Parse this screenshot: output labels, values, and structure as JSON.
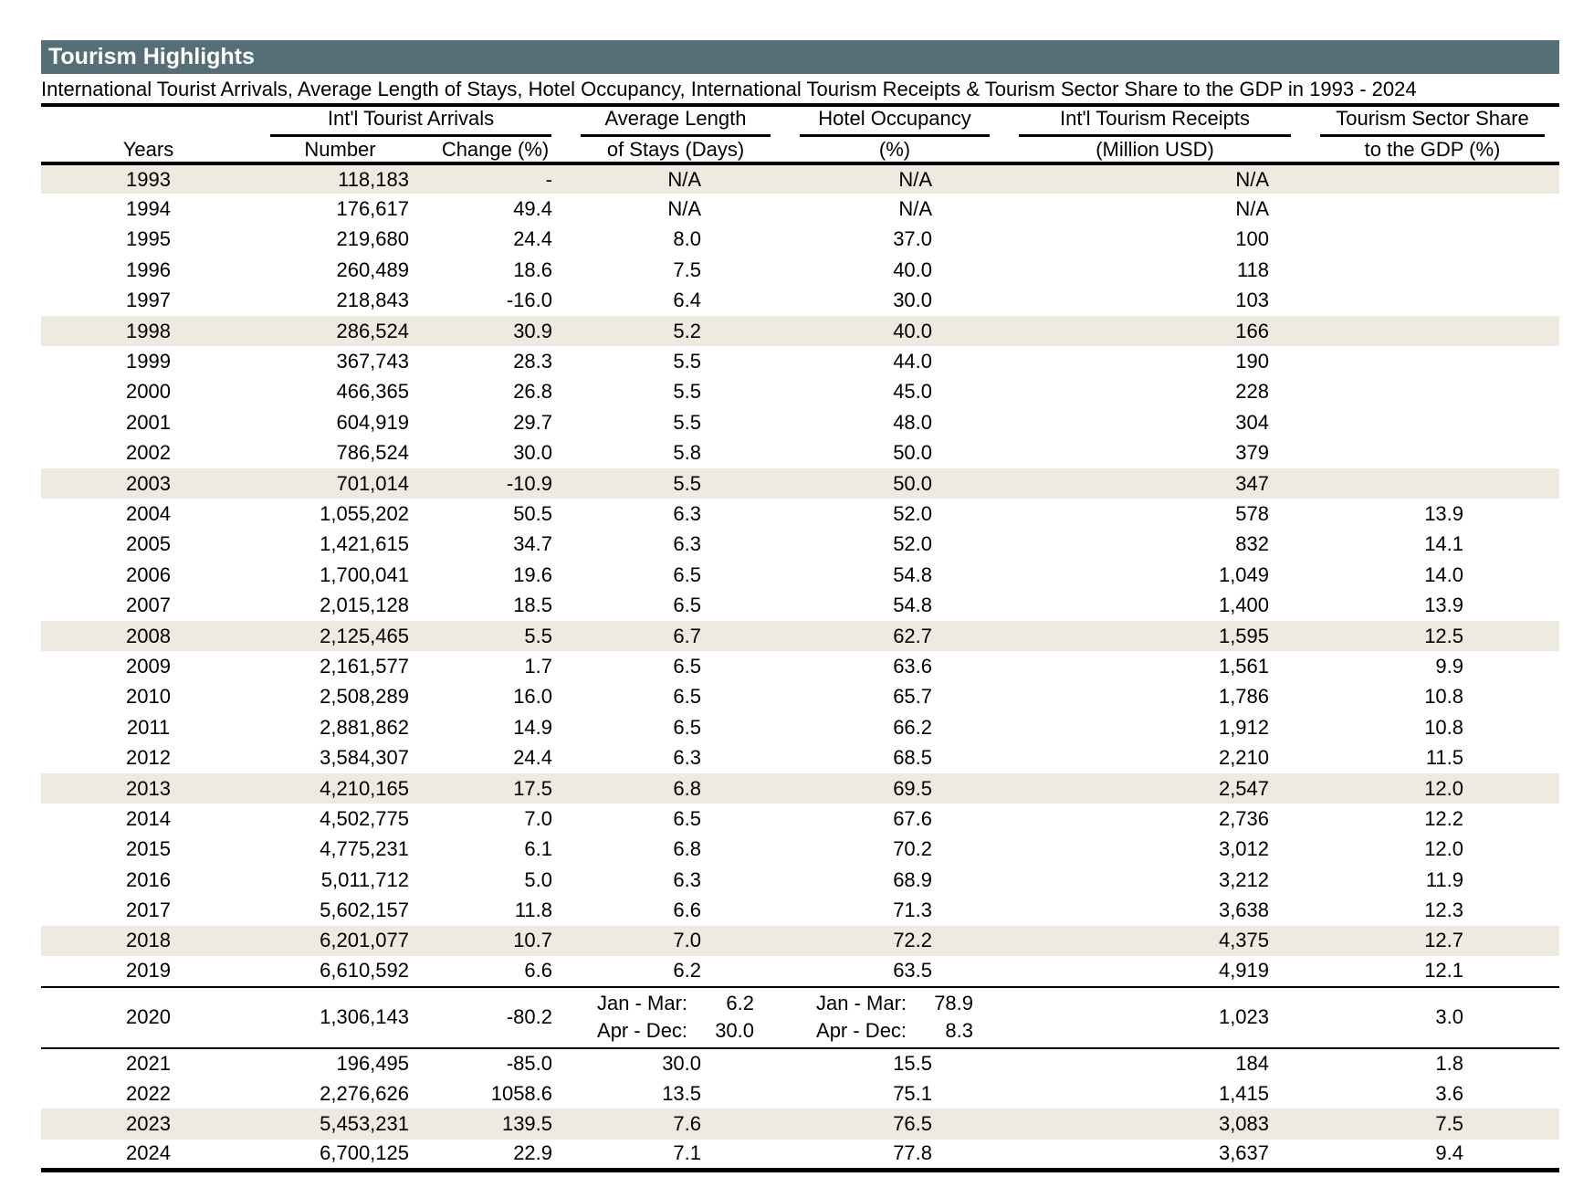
{
  "page": {
    "title_bar": "Tourism Highlights",
    "subtitle": "International Tourist Arrivals, Average Length of Stays, Hotel Occupancy, International Tourism Receipts & Tourism Sector Share to the GDP in 1993 - 2024"
  },
  "colors": {
    "title_bar_bg": "#566E75",
    "title_text": "#FFFFFF",
    "stripe_bg": "#EFEADF",
    "rule": "#000000"
  },
  "table": {
    "header": {
      "years": "Years",
      "groups": [
        {
          "label": "Int'l Tourist Arrivals",
          "sub1": "Number",
          "sub2": "Change (%)"
        },
        {
          "label": "Average Length",
          "sub1": "of Stays (Days)"
        },
        {
          "label": "Hotel Occupancy",
          "sub1": "(%)"
        },
        {
          "label": "Int'l Tourism Receipts",
          "sub1": "(Million USD)"
        },
        {
          "label": "Tourism Sector Share",
          "sub1": "to the GDP (%)"
        }
      ]
    },
    "striped_years": [
      "1993",
      "1998",
      "2003",
      "2008",
      "2013",
      "2018",
      "2023"
    ],
    "rows": [
      {
        "year": "1993",
        "number": "118,183",
        "change": "-",
        "stays": "N/A",
        "occupancy": "N/A",
        "receipts": "N/A",
        "gdp": ""
      },
      {
        "year": "1994",
        "number": "176,617",
        "change": "49.4",
        "stays": "N/A",
        "occupancy": "N/A",
        "receipts": "N/A",
        "gdp": ""
      },
      {
        "year": "1995",
        "number": "219,680",
        "change": "24.4",
        "stays": "8.0",
        "occupancy": "37.0",
        "receipts": "100",
        "gdp": ""
      },
      {
        "year": "1996",
        "number": "260,489",
        "change": "18.6",
        "stays": "7.5",
        "occupancy": "40.0",
        "receipts": "118",
        "gdp": ""
      },
      {
        "year": "1997",
        "number": "218,843",
        "change": "-16.0",
        "stays": "6.4",
        "occupancy": "30.0",
        "receipts": "103",
        "gdp": ""
      },
      {
        "year": "1998",
        "number": "286,524",
        "change": "30.9",
        "stays": "5.2",
        "occupancy": "40.0",
        "receipts": "166",
        "gdp": ""
      },
      {
        "year": "1999",
        "number": "367,743",
        "change": "28.3",
        "stays": "5.5",
        "occupancy": "44.0",
        "receipts": "190",
        "gdp": ""
      },
      {
        "year": "2000",
        "number": "466,365",
        "change": "26.8",
        "stays": "5.5",
        "occupancy": "45.0",
        "receipts": "228",
        "gdp": ""
      },
      {
        "year": "2001",
        "number": "604,919",
        "change": "29.7",
        "stays": "5.5",
        "occupancy": "48.0",
        "receipts": "304",
        "gdp": ""
      },
      {
        "year": "2002",
        "number": "786,524",
        "change": "30.0",
        "stays": "5.8",
        "occupancy": "50.0",
        "receipts": "379",
        "gdp": ""
      },
      {
        "year": "2003",
        "number": "701,014",
        "change": "-10.9",
        "stays": "5.5",
        "occupancy": "50.0",
        "receipts": "347",
        "gdp": ""
      },
      {
        "year": "2004",
        "number": "1,055,202",
        "change": "50.5",
        "stays": "6.3",
        "occupancy": "52.0",
        "receipts": "578",
        "gdp": "13.9"
      },
      {
        "year": "2005",
        "number": "1,421,615",
        "change": "34.7",
        "stays": "6.3",
        "occupancy": "52.0",
        "receipts": "832",
        "gdp": "14.1"
      },
      {
        "year": "2006",
        "number": "1,700,041",
        "change": "19.6",
        "stays": "6.5",
        "occupancy": "54.8",
        "receipts": "1,049",
        "gdp": "14.0"
      },
      {
        "year": "2007",
        "number": "2,015,128",
        "change": "18.5",
        "stays": "6.5",
        "occupancy": "54.8",
        "receipts": "1,400",
        "gdp": "13.9"
      },
      {
        "year": "2008",
        "number": "2,125,465",
        "change": "5.5",
        "stays": "6.7",
        "occupancy": "62.7",
        "receipts": "1,595",
        "gdp": "12.5"
      },
      {
        "year": "2009",
        "number": "2,161,577",
        "change": "1.7",
        "stays": "6.5",
        "occupancy": "63.6",
        "receipts": "1,561",
        "gdp": "9.9"
      },
      {
        "year": "2010",
        "number": "2,508,289",
        "change": "16.0",
        "stays": "6.5",
        "occupancy": "65.7",
        "receipts": "1,786",
        "gdp": "10.8"
      },
      {
        "year": "2011",
        "number": "2,881,862",
        "change": "14.9",
        "stays": "6.5",
        "occupancy": "66.2",
        "receipts": "1,912",
        "gdp": "10.8"
      },
      {
        "year": "2012",
        "number": "3,584,307",
        "change": "24.4",
        "stays": "6.3",
        "occupancy": "68.5",
        "receipts": "2,210",
        "gdp": "11.5"
      },
      {
        "year": "2013",
        "number": "4,210,165",
        "change": "17.5",
        "stays": "6.8",
        "occupancy": "69.5",
        "receipts": "2,547",
        "gdp": "12.0"
      },
      {
        "year": "2014",
        "number": "4,502,775",
        "change": "7.0",
        "stays": "6.5",
        "occupancy": "67.6",
        "receipts": "2,736",
        "gdp": "12.2"
      },
      {
        "year": "2015",
        "number": "4,775,231",
        "change": "6.1",
        "stays": "6.8",
        "occupancy": "70.2",
        "receipts": "3,012",
        "gdp": "12.0"
      },
      {
        "year": "2016",
        "number": "5,011,712",
        "change": "5.0",
        "stays": "6.3",
        "occupancy": "68.9",
        "receipts": "3,212",
        "gdp": "11.9"
      },
      {
        "year": "2017",
        "number": "5,602,157",
        "change": "11.8",
        "stays": "6.6",
        "occupancy": "71.3",
        "receipts": "3,638",
        "gdp": "12.3"
      },
      {
        "year": "2018",
        "number": "6,201,077",
        "change": "10.7",
        "stays": "7.0",
        "occupancy": "72.2",
        "receipts": "4,375",
        "gdp": "12.7"
      },
      {
        "year": "2019",
        "number": "6,610,592",
        "change": "6.6",
        "stays": "6.2",
        "occupancy": "63.5",
        "receipts": "4,919",
        "gdp": "12.1",
        "rule_below": true
      },
      {
        "year": "2020",
        "number": "1,306,143",
        "change": "-80.2",
        "stays_split": [
          [
            "Jan - Mar:",
            "6.2"
          ],
          [
            "Apr - Dec:",
            "30.0"
          ]
        ],
        "occupancy_split": [
          [
            "Jan - Mar:",
            "78.9"
          ],
          [
            "Apr - Dec:",
            "8.3"
          ]
        ],
        "receipts": "1,023",
        "gdp": "3.0",
        "tall": true,
        "rule_below": true
      },
      {
        "year": "2021",
        "number": "196,495",
        "change": "-85.0",
        "stays": "30.0",
        "occupancy": "15.5",
        "receipts": "184",
        "gdp": "1.8"
      },
      {
        "year": "2022",
        "number": "2,276,626",
        "change": "1058.6",
        "stays": "13.5",
        "occupancy": "75.1",
        "receipts": "1,415",
        "gdp": "3.6"
      },
      {
        "year": "2023",
        "number": "5,453,231",
        "change": "139.5",
        "stays": "7.6",
        "occupancy": "76.5",
        "receipts": "3,083",
        "gdp": "7.5"
      },
      {
        "year": "2024",
        "number": "6,700,125",
        "change": "22.9",
        "stays": "7.1",
        "occupancy": "77.8",
        "receipts": "3,637",
        "gdp": "9.4"
      }
    ]
  }
}
